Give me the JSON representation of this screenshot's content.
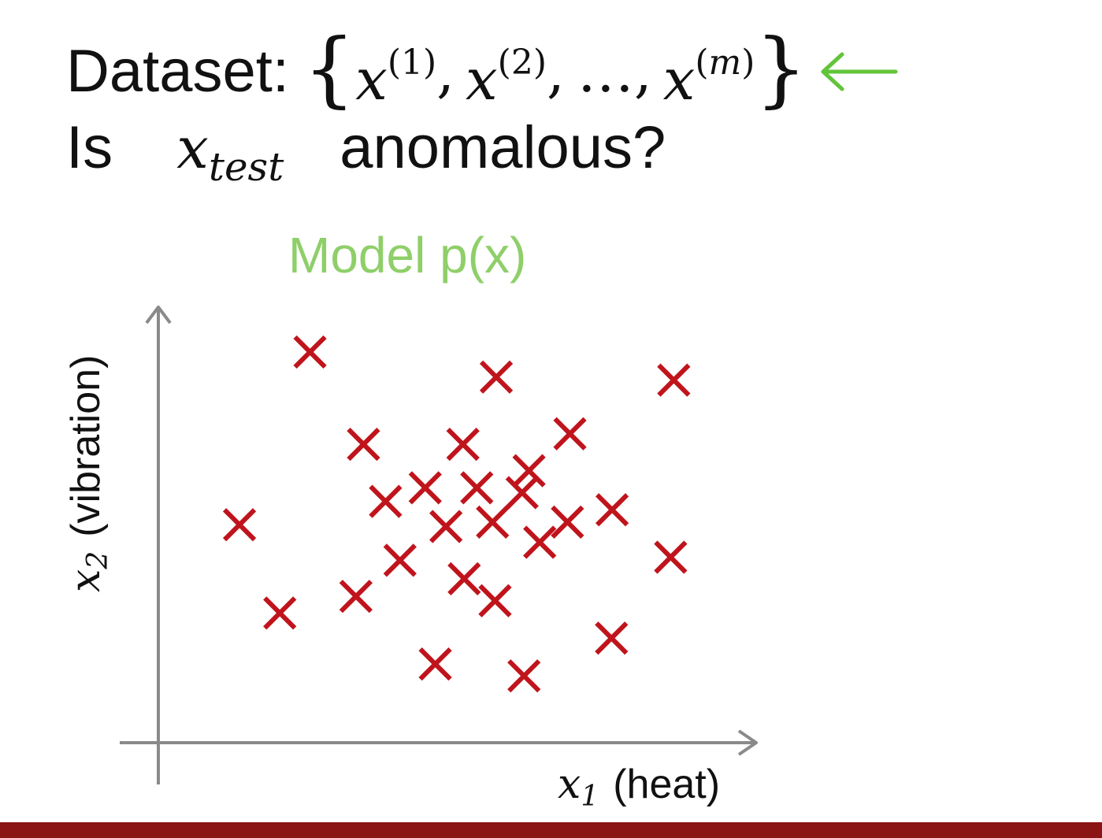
{
  "header": {
    "dataset_label": "Dataset:",
    "set_elements": [
      "x(1)",
      "x(2)",
      "...",
      "x(m)"
    ],
    "elem1_base": "x",
    "elem1_sup": "(1)",
    "elem2_base": "x",
    "elem2_sup": "(2)",
    "ellipsis": "…",
    "elemm_base": "x",
    "elemm_sup_open": "(",
    "elemm_sup_m": "m",
    "elemm_sup_close": ")",
    "question_is": "Is",
    "question_var": "x",
    "question_sub": "test",
    "question_rest": "anomalous?",
    "arrow_color": "#62c43a"
  },
  "chart_data": {
    "type": "scatter",
    "title": "Model p(x)",
    "title_color": "#8fcf6a",
    "xlabel": "x1 (heat)",
    "ylabel": "x2 (vibration)",
    "xlabel_var": "x",
    "xlabel_sub": "1",
    "xlabel_text": "(heat)",
    "ylabel_var": "x",
    "ylabel_sub": "2",
    "ylabel_text": "(vibration)",
    "marker": "x",
    "marker_color": "#c0141c",
    "axis_color": "#8a8a8a",
    "grid": false,
    "legend": "none",
    "xlim": [
      0,
      100
    ],
    "ylim": [
      0,
      100
    ],
    "points": [
      {
        "x": 24.1,
        "y": 88.9
      },
      {
        "x": 53.7,
        "y": 83.2
      },
      {
        "x": 81.9,
        "y": 82.5
      },
      {
        "x": 32.6,
        "y": 67.9
      },
      {
        "x": 48.4,
        "y": 67.9
      },
      {
        "x": 65.4,
        "y": 70.3
      },
      {
        "x": 58.9,
        "y": 61.9
      },
      {
        "x": 36.1,
        "y": 54.9
      },
      {
        "x": 42.4,
        "y": 58.0
      },
      {
        "x": 50.6,
        "y": 58.0
      },
      {
        "x": 57.8,
        "y": 56.9
      },
      {
        "x": 72.1,
        "y": 53.0
      },
      {
        "x": 12.9,
        "y": 49.6
      },
      {
        "x": 45.7,
        "y": 49.2
      },
      {
        "x": 53.1,
        "y": 50.2
      },
      {
        "x": 65.0,
        "y": 50.2
      },
      {
        "x": 60.6,
        "y": 45.6
      },
      {
        "x": 38.4,
        "y": 41.5
      },
      {
        "x": 48.6,
        "y": 37.3
      },
      {
        "x": 81.4,
        "y": 42.2
      },
      {
        "x": 19.3,
        "y": 29.5
      },
      {
        "x": 31.4,
        "y": 33.3
      },
      {
        "x": 53.5,
        "y": 32.3
      },
      {
        "x": 72.0,
        "y": 23.8
      },
      {
        "x": 44.0,
        "y": 17.9
      },
      {
        "x": 58.1,
        "y": 15.2
      }
    ]
  }
}
